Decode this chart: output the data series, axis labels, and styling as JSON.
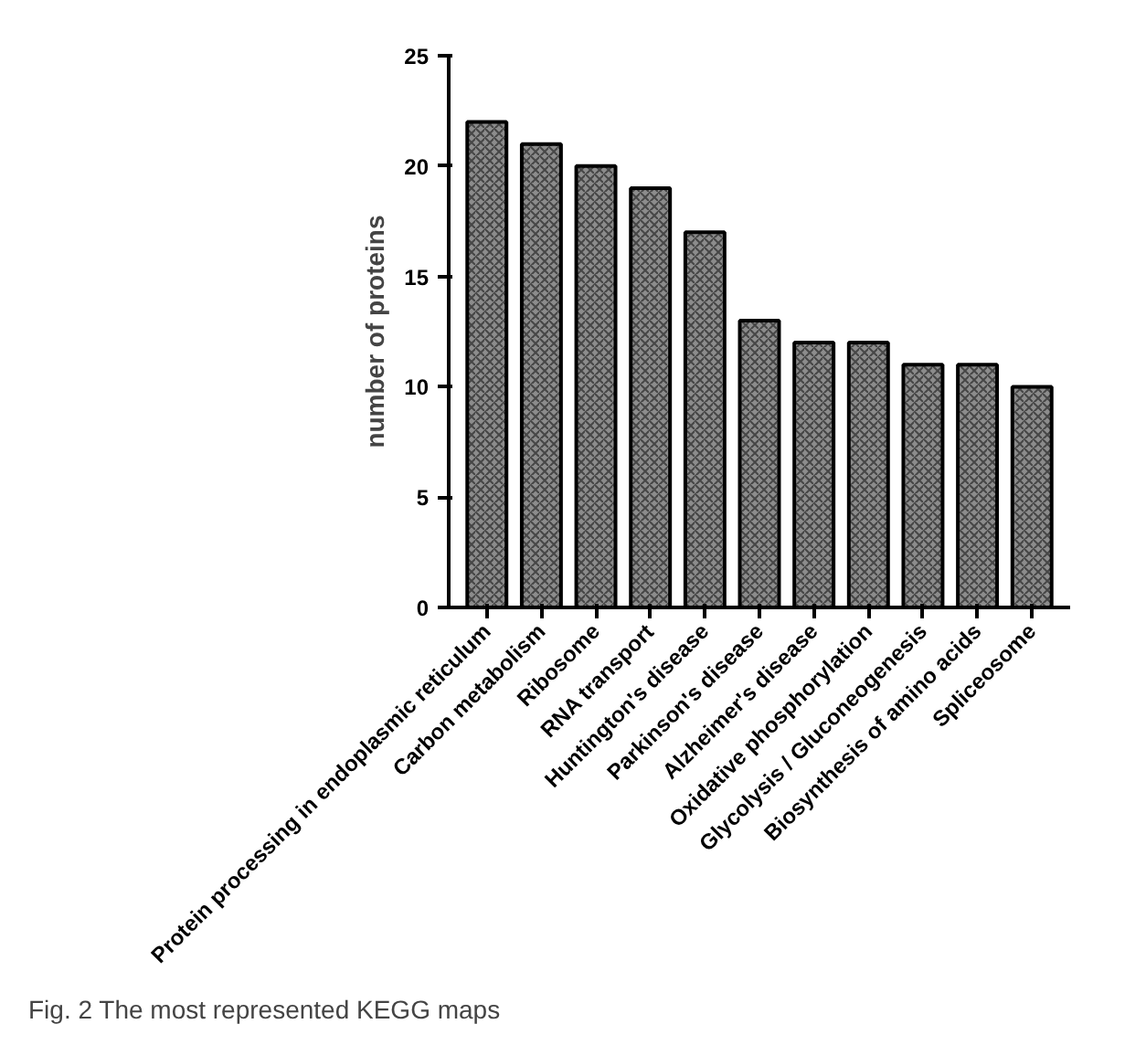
{
  "chart_data": {
    "type": "bar",
    "ylabel": "number of proteins",
    "categories": [
      "Protein processing in endoplasmic reticulum",
      "Carbon metabolism",
      "Ribosome",
      "RNA transport",
      "Huntington's disease",
      "Parkinson's disease",
      "Alzheimer's disease",
      "Oxidative phosphorylation",
      "Glycolysis / Gluconeogenesis",
      "Biosynthesis of amino acids",
      "Spliceosome"
    ],
    "values": [
      22,
      21,
      20,
      19,
      17,
      13,
      12,
      12,
      11,
      11,
      10
    ],
    "color": "#8c8c8c",
    "ylim": [
      0,
      25
    ],
    "yticks": [
      0,
      5,
      10,
      15,
      20,
      25
    ],
    "grid": false,
    "annotations": [
      "Fig. 2 The most represented KEGG maps"
    ]
  }
}
